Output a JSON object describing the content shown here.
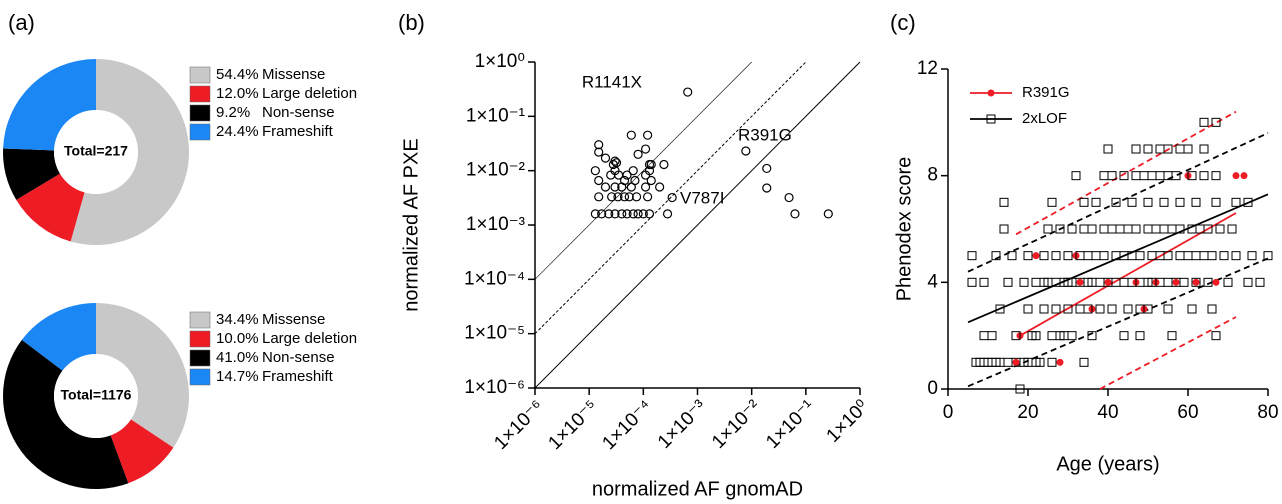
{
  "chart_data": [
    {
      "type": "pie",
      "panel_label": "(a)",
      "center_label": "Total=217",
      "categories": [
        "Missense",
        "Large deletion",
        "Non-sense",
        "Frameshift"
      ],
      "values": [
        54.4,
        12.0,
        9.2,
        24.4
      ],
      "value_labels": [
        "54.4%",
        "12.0%",
        "9.2%",
        "24.4%"
      ],
      "colors": [
        "#c8c8c8",
        "#ee1c24",
        "#000000",
        "#1b87f4"
      ],
      "donut": true
    },
    {
      "type": "pie",
      "center_label": "Total=1176",
      "categories": [
        "Missense",
        "Large deletion",
        "Non-sense",
        "Frameshift"
      ],
      "values": [
        34.4,
        10.0,
        41.0,
        14.7
      ],
      "value_labels": [
        "34.4%",
        "10.0%",
        "41.0%",
        "14.7%"
      ],
      "colors": [
        "#c8c8c8",
        "#ee1c24",
        "#000000",
        "#1b87f4"
      ],
      "donut": true
    },
    {
      "type": "scatter",
      "panel_label": "(b)",
      "x_label": "normalized AF gnomAD",
      "y_label": "normalized AF PXE",
      "log_x": true,
      "log_y": true,
      "xlim": [
        1e-06,
        1
      ],
      "ylim": [
        1e-06,
        1
      ],
      "xticks": [
        {
          "value": 1e-06,
          "label": "1×10⁻⁶"
        },
        {
          "value": 1e-05,
          "label": "1×10⁻⁵"
        },
        {
          "value": 0.0001,
          "label": "1×10⁻⁴"
        },
        {
          "value": 0.001,
          "label": "1×10⁻³"
        },
        {
          "value": 0.01,
          "label": "1×10⁻²"
        },
        {
          "value": 0.1,
          "label": "1×10⁻¹"
        },
        {
          "value": 1,
          "label": "1×10⁰"
        }
      ],
      "yticks": [
        {
          "value": 1e-06,
          "label": "1×10⁻⁶"
        },
        {
          "value": 1e-05,
          "label": "1×10⁻⁵"
        },
        {
          "value": 0.0001,
          "label": "1×10⁻⁴"
        },
        {
          "value": 0.001,
          "label": "1×10⁻³"
        },
        {
          "value": 0.01,
          "label": "1×10⁻²"
        },
        {
          "value": 0.1,
          "label": "1×10⁻¹"
        },
        {
          "value": 1,
          "label": "1×10⁰"
        }
      ],
      "diagonals": [
        {
          "factor": 1,
          "dash": "solid"
        },
        {
          "factor": 10,
          "dash": "dashed"
        },
        {
          "factor": 100,
          "dash": "thin"
        }
      ],
      "annotations": [
        {
          "text": "R1141X",
          "color": "#000000"
        },
        {
          "text": "R391G",
          "color": "#ee1c24"
        },
        {
          "text": "V787I",
          "color": "#ee1c24"
        }
      ],
      "series": [
        {
          "color": "#000000",
          "marker": "open-circle",
          "x": [
            0.00066,
            0.0078,
            0.00034,
            0.019,
            0.019,
            0.049,
            0.063,
            0.26,
            1.3e-05,
            1.7e-05,
            2.3e-05,
            3e-05,
            4e-05,
            5e-05,
            6.5e-05,
            8e-05,
            0.0001,
            0.00013,
            0.00028,
            1.5e-05,
            2.6e-05,
            3.4e-05,
            4.5e-05,
            5.5e-05,
            7.5e-05,
            0.00012,
            2e-05,
            3e-05,
            4e-05,
            6e-05,
            0.00011,
            0.0002,
            1.5e-05,
            4.5e-05,
            7e-05,
            0.00014,
            2.5e-05,
            3.5e-05,
            5e-05,
            0.00011,
            1.3e-05,
            3e-05,
            6.5e-05,
            0.00013,
            2.8e-05,
            0.00013,
            0.00014,
            0.00024,
            2e-05,
            3e-05,
            3.2e-05,
            8e-05,
            0.00011,
            6e-05,
            0.00012,
            1.5e-05,
            1.5e-05
          ],
          "values": [
            0.28,
            0.023,
            0.0032,
            0.011,
            0.0048,
            0.0032,
            0.0016,
            0.0016,
            0.0016,
            0.0016,
            0.0016,
            0.0016,
            0.0016,
            0.0016,
            0.0016,
            0.0016,
            0.0016,
            0.0016,
            0.0016,
            0.0033,
            0.0033,
            0.0033,
            0.0033,
            0.0033,
            0.0033,
            0.0033,
            0.005,
            0.005,
            0.005,
            0.005,
            0.005,
            0.005,
            0.0066,
            0.0066,
            0.0066,
            0.0066,
            0.0083,
            0.0083,
            0.0083,
            0.0083,
            0.01,
            0.01,
            0.01,
            0.01,
            0.013,
            0.013,
            0.013,
            0.013,
            0.017,
            0.015,
            0.014,
            0.02,
            0.025,
            0.045,
            0.045,
            0.03,
            0.022
          ]
        }
      ]
    },
    {
      "type": "scatter",
      "panel_label": "(c)",
      "x_label": "Age (years)",
      "y_label": "Phenodex score",
      "xlim": [
        0,
        80
      ],
      "ylim": [
        0,
        12
      ],
      "xticks": [
        0,
        20,
        40,
        60,
        80
      ],
      "yticks": [
        0,
        4,
        8,
        12
      ],
      "legend": "top-left",
      "series": [
        {
          "name": "R391G",
          "color": "#ee1c24",
          "marker": "filled-circle",
          "x": [
            17,
            18,
            22,
            28,
            32,
            33,
            36,
            40,
            47,
            49,
            52,
            57,
            60,
            62,
            67,
            72,
            74
          ],
          "values": [
            1,
            2,
            5,
            1,
            5,
            4,
            3,
            4,
            4,
            3,
            4,
            4,
            8,
            4,
            4,
            8,
            8
          ],
          "fit": {
            "x": [
              18,
              72
            ],
            "values": [
              2,
              6.6
            ]
          },
          "ci_upper": {
            "x": [
              17,
              72
            ],
            "values": [
              5.8,
              10.4
            ]
          },
          "ci_lower": {
            "x": [
              38,
              72
            ],
            "values": [
              0,
              2.7
            ]
          }
        },
        {
          "name": "2xLOF",
          "color": "#000000",
          "marker": "open-square",
          "x": [
            18,
            7,
            8,
            9,
            10,
            11,
            12,
            13,
            15,
            17,
            19,
            20,
            22,
            23,
            26,
            34,
            9,
            11,
            17,
            21,
            22,
            26,
            28,
            29,
            31,
            36,
            44,
            48,
            56,
            67,
            13,
            20,
            24,
            27,
            30,
            33,
            35,
            38,
            41,
            45,
            48,
            50,
            55,
            61,
            66,
            6,
            9,
            15,
            19,
            22,
            24,
            25,
            27,
            29,
            30,
            31,
            33,
            35,
            36,
            38,
            40,
            42,
            44,
            46,
            48,
            50,
            51,
            53,
            55,
            57,
            59,
            62,
            65,
            70,
            75,
            78,
            6,
            12,
            16,
            20,
            24,
            27,
            30,
            33,
            35,
            37,
            39,
            42,
            44,
            46,
            48,
            51,
            53,
            55,
            58,
            60,
            62,
            64,
            66,
            69,
            72,
            76,
            80,
            14,
            25,
            28,
            31,
            34,
            36,
            39,
            41,
            43,
            45,
            47,
            50,
            52,
            54,
            56,
            58,
            61,
            63,
            65,
            68,
            71,
            14,
            26,
            34,
            37,
            42,
            46,
            50,
            54,
            58,
            62,
            67,
            72,
            75,
            32,
            39,
            41,
            44,
            47,
            49,
            51,
            53,
            55,
            57,
            61,
            64,
            67,
            40,
            47,
            50,
            53,
            55,
            58,
            60,
            64,
            64,
            67
          ],
          "values": [
            0,
            1,
            1,
            1,
            1,
            1,
            1,
            1,
            1,
            1,
            1,
            1,
            1,
            1,
            1,
            1,
            2,
            2,
            2,
            2,
            2,
            2,
            2,
            2,
            2,
            2,
            2,
            2,
            2,
            2,
            3,
            3,
            3,
            3,
            3,
            3,
            3,
            3,
            3,
            3,
            3,
            3,
            3,
            3,
            3,
            4,
            4,
            4,
            4,
            4,
            4,
            4,
            4,
            4,
            4,
            4,
            4,
            4,
            4,
            4,
            4,
            4,
            4,
            4,
            4,
            4,
            4,
            4,
            4,
            4,
            4,
            4,
            4,
            4,
            4,
            4,
            5,
            5,
            5,
            5,
            5,
            5,
            5,
            5,
            5,
            5,
            5,
            5,
            5,
            5,
            5,
            5,
            5,
            5,
            5,
            5,
            5,
            5,
            5,
            5,
            5,
            5,
            5,
            6,
            6,
            6,
            6,
            6,
            6,
            6,
            6,
            6,
            6,
            6,
            6,
            6,
            6,
            6,
            6,
            6,
            6,
            6,
            6,
            6,
            7,
            7,
            7,
            7,
            7,
            7,
            7,
            7,
            7,
            7,
            7,
            7,
            7,
            8,
            8,
            8,
            8,
            8,
            8,
            8,
            8,
            8,
            8,
            8,
            8,
            8,
            9,
            9,
            9,
            9,
            9,
            9,
            9,
            9,
            10,
            10
          ],
          "fit": {
            "x": [
              5,
              80
            ],
            "values": [
              2.5,
              7.3
            ]
          },
          "ci_upper": {
            "x": [
              5,
              80
            ],
            "values": [
              4.4,
              9.6
            ]
          },
          "ci_lower": {
            "x": [
              5,
              80
            ],
            "values": [
              0.1,
              4.9
            ]
          }
        }
      ]
    }
  ]
}
